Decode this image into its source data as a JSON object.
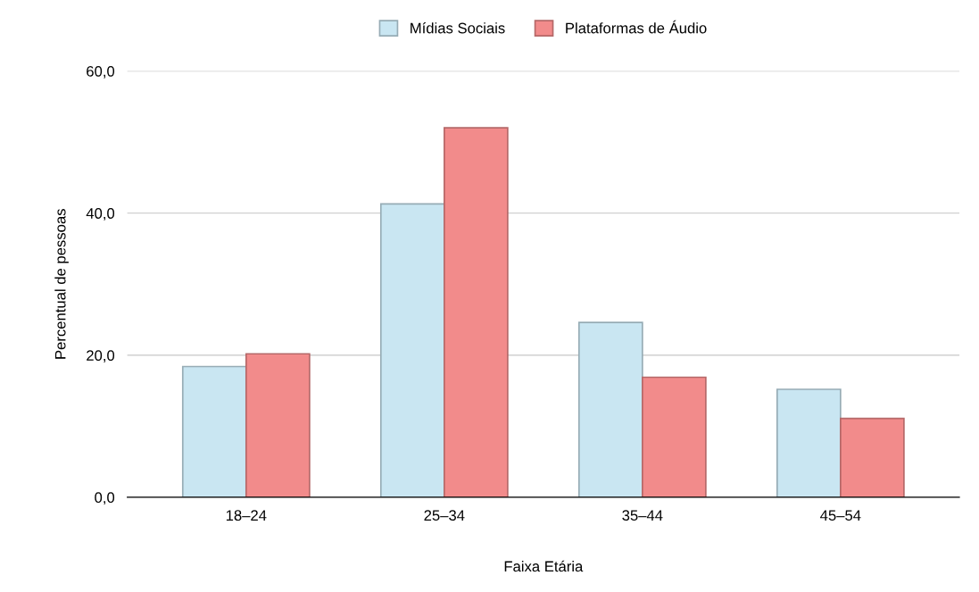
{
  "chart_data": {
    "type": "bar",
    "xlabel": "Faixa Etária",
    "ylabel": "Percentual de pessoas",
    "categories": [
      "18–24",
      "25–34",
      "35–44",
      "45–54"
    ],
    "series": [
      {
        "name": "Mídias Sociais",
        "color": "#c9e6f2",
        "values": [
          18.4,
          41.3,
          24.6,
          15.2
        ]
      },
      {
        "name": "Plataformas de Áudio",
        "color": "#f28b8b",
        "values": [
          20.2,
          52.0,
          16.9,
          11.1
        ]
      }
    ],
    "ylim": [
      0,
      60
    ],
    "yticks": [
      {
        "value": 0,
        "label": "0,0"
      },
      {
        "value": 20,
        "label": "20,0"
      },
      {
        "value": 40,
        "label": "40,0"
      },
      {
        "value": 60,
        "label": "60,0"
      }
    ],
    "grid": "y",
    "legend": "top"
  }
}
